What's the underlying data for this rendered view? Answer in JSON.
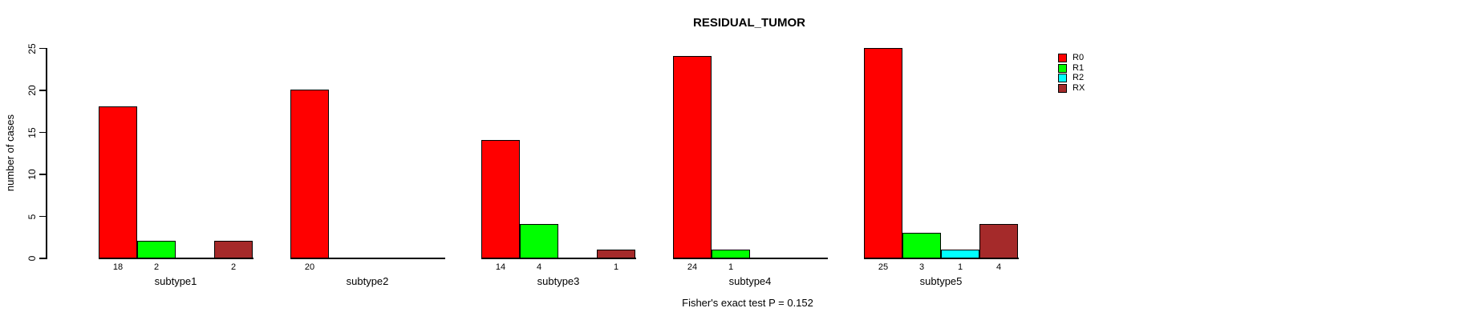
{
  "chart_data": {
    "type": "bar",
    "title": "RESIDUAL_TUMOR",
    "xlabel": "",
    "ylabel": "number of cases",
    "categories": [
      "subtype1",
      "subtype2",
      "subtype3",
      "subtype4",
      "subtype5"
    ],
    "series": [
      {
        "name": "R0",
        "color": "#FF0000",
        "values": [
          18,
          20,
          14,
          24,
          25
        ]
      },
      {
        "name": "R1",
        "color": "#00FF00",
        "values": [
          2,
          0,
          4,
          1,
          3
        ]
      },
      {
        "name": "R2",
        "color": "#00FFFF",
        "values": [
          0,
          0,
          0,
          0,
          1
        ]
      },
      {
        "name": "RX",
        "color": "#A52A2A",
        "values": [
          2,
          0,
          1,
          0,
          4
        ]
      }
    ],
    "ylim": [
      0,
      25
    ],
    "yticks": [
      0,
      5,
      10,
      15,
      20,
      25
    ],
    "grid": false,
    "legend_position": "top-right",
    "bar_value_labels_shown": true,
    "zero_value_bars_hidden": true,
    "annotation": "Fisher's exact test P = 0.152"
  }
}
